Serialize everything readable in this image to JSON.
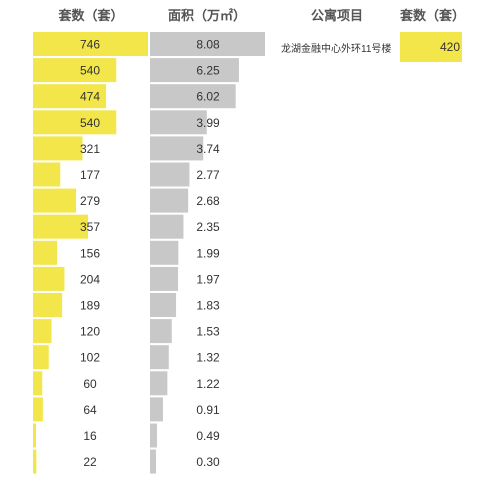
{
  "headers": {
    "units": "套数（套）",
    "area": "面积（万㎡）",
    "project": "公寓项目",
    "project_units": "套数（套）"
  },
  "chart_data": [
    {
      "type": "bar",
      "orientation": "horizontal",
      "name": "套数（套）",
      "color": "#f2e64b",
      "xlim": [
        0,
        746
      ],
      "values": [
        746,
        540,
        474,
        540,
        321,
        177,
        279,
        357,
        156,
        204,
        189,
        120,
        102,
        60,
        64,
        16,
        22
      ]
    },
    {
      "type": "bar",
      "orientation": "horizontal",
      "name": "面积（万㎡）",
      "color": "#c8c8c8",
      "xlim": [
        0,
        8.08
      ],
      "values": [
        "8.08",
        "6.25",
        "6.02",
        "3.99",
        "3.74",
        "2.77",
        "2.68",
        "2.35",
        "1.99",
        "1.97",
        "1.83",
        "1.53",
        "1.32",
        "1.22",
        "0.91",
        "0.49",
        "0.30"
      ]
    },
    {
      "type": "bar",
      "orientation": "horizontal",
      "name": "公寓项目 套数（套）",
      "color": "#f2e64b",
      "xlim": [
        0,
        420
      ],
      "categories": [
        "龙湖金融中心外环11号楼"
      ],
      "values": [
        420
      ]
    }
  ]
}
